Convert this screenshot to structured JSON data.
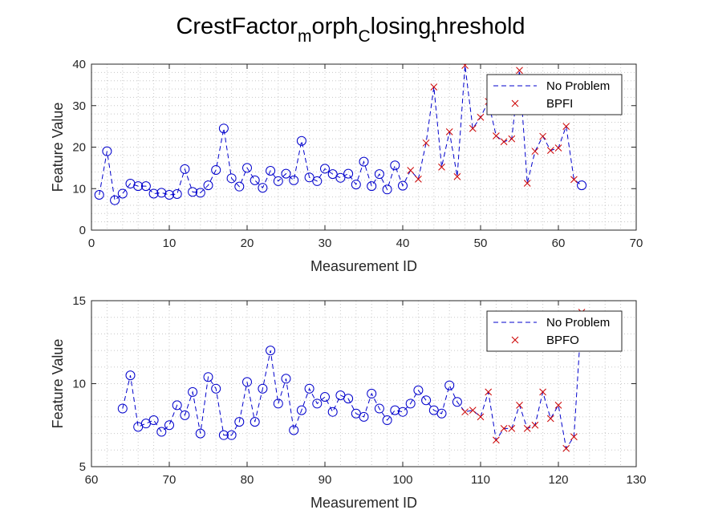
{
  "title": {
    "parts": [
      {
        "text": "CrestFactor",
        "sub": false
      },
      {
        "text": "m",
        "sub": true
      },
      {
        "text": "orph",
        "sub": false
      },
      {
        "text": "C",
        "sub": true
      },
      {
        "text": "losing",
        "sub": false
      },
      {
        "text": "t",
        "sub": true
      },
      {
        "text": "hreshold",
        "sub": false
      }
    ]
  },
  "colors": {
    "normal": "#0000cc",
    "fault": "#cc0000",
    "axis": "#262626",
    "grid": "#c8c8c8"
  },
  "chart_data": [
    {
      "type": "scatter",
      "xlabel": "Measurement ID",
      "ylabel": "Feature Value",
      "xlim": [
        0,
        70
      ],
      "ylim": [
        0,
        40
      ],
      "xticks": [
        0,
        10,
        20,
        30,
        40,
        50,
        60,
        70
      ],
      "yticks": [
        0,
        10,
        20,
        30,
        40
      ],
      "grid": "minor",
      "legend_position": "top-right",
      "legend": [
        {
          "label": "No Problem",
          "marker": "dashed-line"
        },
        {
          "label": "BPFI",
          "marker": "x"
        }
      ],
      "x": [
        1,
        2,
        3,
        4,
        5,
        6,
        7,
        8,
        9,
        10,
        11,
        12,
        13,
        14,
        15,
        16,
        17,
        18,
        19,
        20,
        21,
        22,
        23,
        24,
        25,
        26,
        27,
        28,
        29,
        30,
        31,
        32,
        33,
        34,
        35,
        36,
        37,
        38,
        39,
        40,
        41,
        42,
        43,
        44,
        45,
        46,
        47,
        48,
        49,
        50,
        51,
        52,
        53,
        54,
        55,
        56,
        57,
        58,
        59,
        60,
        61,
        62,
        63
      ],
      "y": [
        8.5,
        19,
        7.2,
        8.8,
        11.2,
        10.6,
        10.6,
        8.8,
        9,
        8.5,
        8.7,
        14.7,
        9.2,
        9,
        10.8,
        14.5,
        24.5,
        12.5,
        10.5,
        15,
        12,
        10.2,
        14.3,
        11.8,
        13.6,
        12,
        21.5,
        12.7,
        11.8,
        14.8,
        13.5,
        12.6,
        13.6,
        11,
        16.5,
        10.6,
        13.5,
        9.8,
        15.6,
        10.7,
        14.4,
        12.3,
        21,
        34.5,
        15.2,
        23.7,
        12.9,
        39.7,
        24.5,
        27.2,
        31,
        22.7,
        21.3,
        22,
        38.5,
        11.3,
        19,
        22.6,
        19.2,
        19.8,
        25,
        12.2,
        10.8
      ],
      "markers": [
        "o",
        "o",
        "o",
        "o",
        "o",
        "o",
        "o",
        "o",
        "o",
        "o",
        "o",
        "o",
        "o",
        "o",
        "o",
        "o",
        "o",
        "o",
        "o",
        "o",
        "o",
        "o",
        "o",
        "o",
        "o",
        "o",
        "o",
        "o",
        "o",
        "o",
        "o",
        "o",
        "o",
        "o",
        "o",
        "o",
        "o",
        "o",
        "o",
        "o",
        "x",
        "x",
        "x",
        "x",
        "x",
        "x",
        "x",
        "x",
        "x",
        "x",
        "x",
        "x",
        "x",
        "x",
        "x",
        "x",
        "x",
        "x",
        "x",
        "x",
        "x",
        "x",
        "o"
      ]
    },
    {
      "type": "scatter",
      "xlabel": "Measurement ID",
      "ylabel": "Feature Value",
      "xlim": [
        60,
        130
      ],
      "ylim": [
        5,
        15
      ],
      "xticks": [
        60,
        70,
        80,
        90,
        100,
        110,
        120,
        130
      ],
      "yticks": [
        5,
        10,
        15
      ],
      "grid": "minor",
      "legend_position": "top-right",
      "legend": [
        {
          "label": "No Problem",
          "marker": "dashed-line"
        },
        {
          "label": "BPFO",
          "marker": "x"
        }
      ],
      "x": [
        64,
        65,
        66,
        67,
        68,
        69,
        70,
        71,
        72,
        73,
        74,
        75,
        76,
        77,
        78,
        79,
        80,
        81,
        82,
        83,
        84,
        85,
        86,
        87,
        88,
        89,
        90,
        91,
        92,
        93,
        94,
        95,
        96,
        97,
        98,
        99,
        100,
        101,
        102,
        103,
        104,
        105,
        106,
        107,
        108,
        109,
        110,
        111,
        112,
        113,
        114,
        115,
        116,
        117,
        118,
        119,
        120,
        121,
        122,
        123
      ],
      "y": [
        8.5,
        10.5,
        7.4,
        7.6,
        7.8,
        7.1,
        7.5,
        8.7,
        8.1,
        9.5,
        7,
        10.4,
        9.7,
        6.9,
        6.9,
        7.7,
        10.1,
        7.7,
        9.7,
        12,
        8.8,
        10.3,
        7.2,
        8.4,
        9.7,
        8.8,
        9.2,
        8.3,
        9.3,
        9.1,
        8.2,
        8,
        9.4,
        8.5,
        7.8,
        8.4,
        8.3,
        8.8,
        9.6,
        9,
        8.4,
        8.2,
        9.9,
        8.9,
        8.3,
        8.4,
        8,
        9.5,
        6.6,
        7.3,
        7.3,
        8.7,
        7.3,
        7.5,
        9.5,
        7.9,
        8.7,
        6.1,
        6.8,
        14.3
      ],
      "markers": [
        "o",
        "o",
        "o",
        "o",
        "o",
        "o",
        "o",
        "o",
        "o",
        "o",
        "o",
        "o",
        "o",
        "o",
        "o",
        "o",
        "o",
        "o",
        "o",
        "o",
        "o",
        "o",
        "o",
        "o",
        "o",
        "o",
        "o",
        "o",
        "o",
        "o",
        "o",
        "o",
        "o",
        "o",
        "o",
        "o",
        "o",
        "o",
        "o",
        "o",
        "o",
        "o",
        "o",
        "o",
        "x",
        "x",
        "x",
        "x",
        "x",
        "x",
        "x",
        "x",
        "x",
        "x",
        "x",
        "x",
        "x",
        "x",
        "x",
        "x"
      ]
    }
  ]
}
